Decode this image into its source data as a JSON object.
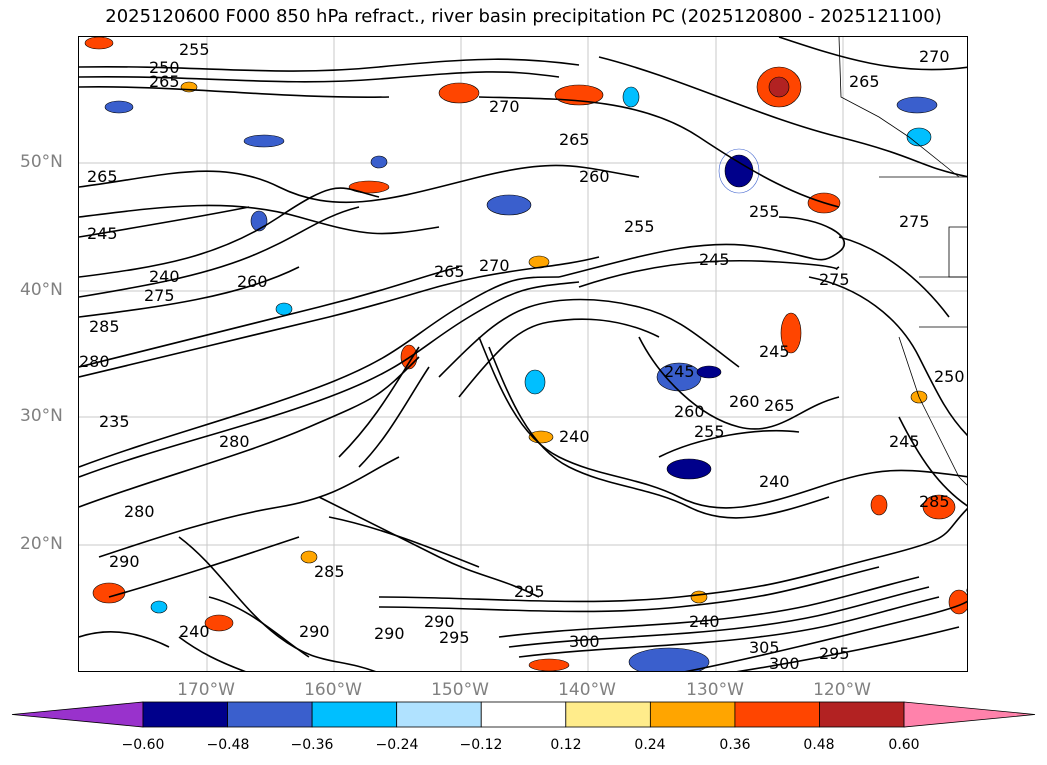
{
  "title": "2025120600 F000 850 hPa refract., river basin precipitation PC (2025120800 - 2025121100)",
  "map": {
    "lat_labels": [
      "50°N",
      "40°N",
      "30°N",
      "20°N"
    ],
    "lon_labels": [
      "170°W",
      "160°W",
      "150°W",
      "140°W",
      "130°W",
      "120°W"
    ],
    "contour_labels": [
      "255",
      "250",
      "265",
      "270",
      "265",
      "265",
      "270",
      "275",
      "265",
      "245",
      "240",
      "275",
      "285",
      "280",
      "265",
      "255",
      "245",
      "235",
      "260",
      "260",
      "245",
      "280",
      "290",
      "240",
      "260",
      "255",
      "265",
      "240",
      "280",
      "290",
      "285",
      "290",
      "295",
      "290",
      "295",
      "300",
      "305",
      "300",
      "295",
      "240",
      "285",
      "250",
      "275",
      "245",
      "260",
      "270",
      "245",
      "255",
      "240"
    ]
  },
  "colorbar": {
    "tick_labels": [
      "−0.60",
      "−0.48",
      "−0.36",
      "−0.24",
      "−0.12",
      "0.12",
      "0.24",
      "0.36",
      "0.48",
      "0.60"
    ],
    "colors": [
      "#9932cc",
      "#00008b",
      "#3a5fcd",
      "#00bfff",
      "#b0e2ff",
      "#ffffff",
      "#ffec8b",
      "#ffa500",
      "#ff4500",
      "#b22222",
      "#ff82ab"
    ],
    "extend": "both"
  }
}
